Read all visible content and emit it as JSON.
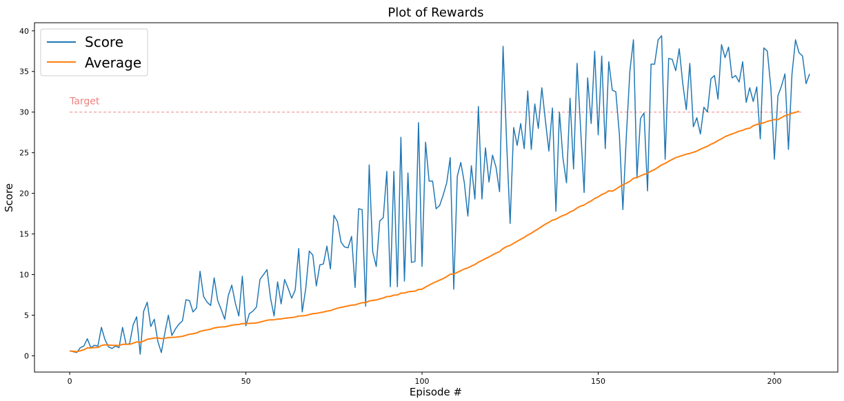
{
  "chart_data": {
    "type": "line",
    "title": "Plot of Rewards",
    "xlabel": "Episode #",
    "ylabel": "Score",
    "xlim": [
      -10,
      218
    ],
    "ylim": [
      -2,
      41
    ],
    "xticks": [
      0,
      50,
      100,
      150,
      200
    ],
    "yticks": [
      0,
      5,
      10,
      15,
      20,
      25,
      30,
      35,
      40
    ],
    "grid": false,
    "legend_position": "top-left",
    "target": {
      "label": "Target",
      "value": 30,
      "x_start": 0,
      "x_end": 208,
      "color": "#f08080"
    },
    "series": [
      {
        "name": "Score",
        "color": "#1f77b4",
        "values": [
          0.6,
          0.5,
          0.4,
          1.0,
          1.2,
          2.1,
          1.0,
          1.3,
          1.2,
          3.5,
          2.0,
          1.1,
          0.9,
          1.2,
          1.0,
          3.5,
          1.4,
          1.5,
          3.8,
          4.8,
          0.2,
          5.5,
          6.6,
          3.6,
          4.5,
          1.8,
          0.4,
          2.8,
          5.0,
          2.5,
          3.3,
          3.9,
          4.3,
          6.9,
          6.8,
          5.4,
          5.9,
          10.4,
          7.3,
          6.6,
          6.2,
          9.6,
          6.8,
          5.7,
          4.5,
          7.4,
          8.7,
          6.5,
          4.9,
          9.8,
          3.7,
          5.2,
          5.5,
          6.0,
          9.4,
          10.0,
          10.6,
          7.1,
          4.9,
          9.1,
          6.4,
          9.4,
          8.3,
          7.1,
          8.1,
          13.2,
          5.4,
          8.3,
          12.9,
          12.4,
          8.6,
          11.2,
          11.3,
          13.5,
          10.7,
          17.3,
          16.5,
          14.0,
          13.4,
          13.3,
          14.7,
          8.4,
          18.1,
          18.0,
          6.1,
          23.5,
          12.8,
          11.0,
          16.6,
          17.0,
          22.7,
          8.5,
          22.7,
          8.5,
          26.9,
          9.2,
          22.5,
          11.5,
          11.6,
          28.7,
          11.0,
          26.3,
          21.5,
          21.5,
          18.1,
          18.5,
          19.8,
          21.3,
          24.4,
          8.2,
          22.1,
          23.8,
          21.3,
          17.2,
          23.4,
          19.3,
          30.7,
          19.3,
          25.6,
          21.4,
          24.7,
          23.2,
          20.2,
          38.1,
          26.3,
          16.3,
          28.1,
          25.9,
          28.6,
          25.5,
          32.6,
          25.4,
          31.0,
          28.0,
          33.0,
          29.0,
          25.2,
          30.5,
          17.8,
          30.0,
          24.3,
          21.3,
          31.7,
          23.0,
          36.0,
          28.0,
          20.1,
          34.2,
          28.6,
          37.5,
          27.2,
          36.9,
          25.5,
          36.2,
          32.7,
          32.5,
          27.3,
          18.0,
          27.2,
          35.1,
          38.9,
          22.0,
          29.2,
          29.9,
          20.3,
          35.9,
          35.9,
          38.9,
          39.4,
          24.2,
          36.6,
          36.5,
          35.1,
          37.8,
          33.5,
          30.3,
          36.0,
          28.2,
          29.3,
          27.3,
          30.6,
          30.0,
          34.1,
          34.5,
          31.6,
          38.3,
          36.7,
          38.0,
          34.2,
          34.5,
          33.7,
          36.2,
          31.2,
          33.0,
          31.3,
          33.1,
          26.7,
          37.9,
          37.5,
          33.0,
          24.2,
          32.0,
          33.2,
          34.7,
          25.4,
          34.7,
          38.9,
          37.3,
          36.9,
          33.5,
          34.7
        ]
      },
      {
        "name": "Average",
        "color": "#ff7f0e",
        "values": [
          0.6,
          0.55,
          0.5,
          0.62,
          0.74,
          0.97,
          0.97,
          1.01,
          1.03,
          1.28,
          1.35,
          1.33,
          1.3,
          1.29,
          1.27,
          1.41,
          1.41,
          1.42,
          1.55,
          1.72,
          1.65,
          1.82,
          2.03,
          2.1,
          2.2,
          2.19,
          2.12,
          2.15,
          2.25,
          2.26,
          2.29,
          2.34,
          2.4,
          2.53,
          2.65,
          2.72,
          2.81,
          3.01,
          3.11,
          3.2,
          3.28,
          3.43,
          3.5,
          3.55,
          3.57,
          3.66,
          3.77,
          3.83,
          3.85,
          3.97,
          3.96,
          3.99,
          4.01,
          4.05,
          4.15,
          4.26,
          4.38,
          4.43,
          4.44,
          4.52,
          4.54,
          4.62,
          4.67,
          4.71,
          4.77,
          4.9,
          4.91,
          4.96,
          5.08,
          5.19,
          5.22,
          5.31,
          5.39,
          5.5,
          5.56,
          5.72,
          5.86,
          5.96,
          6.05,
          6.14,
          6.24,
          6.27,
          6.41,
          6.54,
          6.54,
          6.75,
          6.82,
          6.87,
          7.0,
          7.12,
          7.29,
          7.31,
          7.47,
          7.49,
          7.71,
          7.73,
          7.88,
          7.92,
          7.96,
          8.17,
          8.2,
          8.46,
          8.7,
          8.93,
          9.12,
          9.32,
          9.51,
          9.75,
          10.04,
          10.06,
          10.27,
          10.48,
          10.68,
          10.82,
          11.05,
          11.24,
          11.53,
          11.73,
          11.97,
          12.17,
          12.42,
          12.64,
          12.82,
          13.2,
          13.45,
          13.59,
          13.85,
          14.09,
          14.35,
          14.58,
          14.87,
          15.09,
          15.38,
          15.63,
          15.93,
          16.2,
          16.43,
          16.69,
          16.82,
          17.07,
          17.27,
          17.43,
          17.7,
          17.89,
          18.2,
          18.43,
          18.56,
          18.84,
          19.06,
          19.37,
          19.56,
          19.86,
          20.02,
          20.31,
          20.26,
          20.51,
          20.81,
          21.03,
          21.26,
          21.48,
          21.85,
          21.95,
          22.14,
          22.33,
          22.45,
          22.74,
          22.93,
          23.21,
          23.5,
          23.68,
          23.94,
          24.17,
          24.4,
          24.53,
          24.68,
          24.82,
          24.92,
          25.05,
          25.21,
          25.43,
          25.62,
          25.79,
          26.05,
          26.23,
          26.5,
          26.72,
          26.98,
          27.15,
          27.32,
          27.47,
          27.66,
          27.76,
          27.95,
          28.01,
          28.31,
          28.47,
          28.61,
          28.67,
          28.86,
          28.96,
          29.09,
          29.06,
          29.32,
          29.56,
          29.67,
          29.86,
          29.97,
          30.1
        ]
      }
    ]
  }
}
